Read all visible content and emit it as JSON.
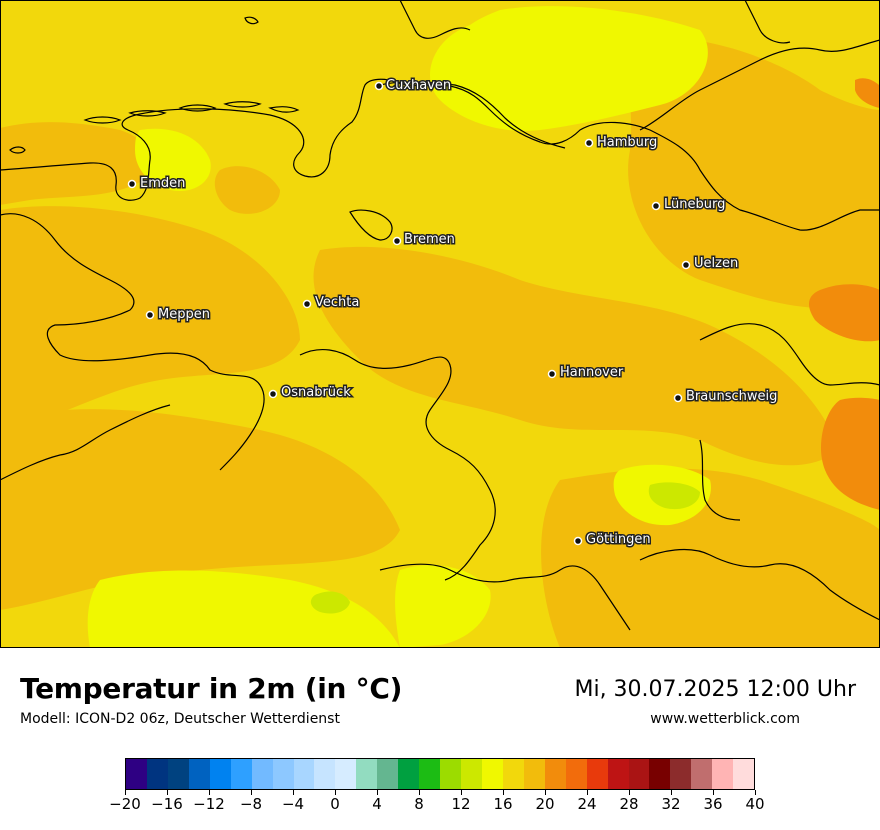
{
  "title": "Temperatur in 2m (in °C)",
  "model": "Modell: ICON-D2 06z, Deutscher Wetterdienst",
  "datetime": "Mi, 30.07.2025 12:00 Uhr",
  "website": "www.wetterblick.com",
  "cities": [
    {
      "name": "Cuxhaven"
    },
    {
      "name": "Hamburg"
    },
    {
      "name": "Emden"
    },
    {
      "name": "Lüneburg"
    },
    {
      "name": "Bremen"
    },
    {
      "name": "Uelzen"
    },
    {
      "name": "Vechta"
    },
    {
      "name": "Meppen"
    },
    {
      "name": "Hannover"
    },
    {
      "name": "Osnabrück"
    },
    {
      "name": "Braunschweig"
    },
    {
      "name": "Göttingen"
    }
  ],
  "colorbar": {
    "colors": [
      "#2e0083",
      "#003480",
      "#004280",
      "#0062c0",
      "#0082f0",
      "#2ea0ff",
      "#72baff",
      "#8dc8ff",
      "#a8d6ff",
      "#c6e4ff",
      "#d6ecff",
      "#92dcc0",
      "#64b690",
      "#00a040",
      "#1cbc14",
      "#9cdc00",
      "#cce800",
      "#f0f800",
      "#f2d80c",
      "#f2bc0c",
      "#f28c0c",
      "#f26c0c",
      "#e83a0c",
      "#be1414",
      "#aa1414",
      "#780000",
      "#8c2c2c",
      "#c06e6e",
      "#ffb4b4",
      "#ffdcdc"
    ],
    "tick_labels": [
      "−20",
      "−16",
      "−12",
      "−8",
      "−4",
      "0",
      "4",
      "8",
      "12",
      "16",
      "20",
      "24",
      "28",
      "32",
      "36",
      "40"
    ]
  },
  "map_colors": {
    "base": "#f2d80c",
    "warm": "#f2bc0c",
    "warmer": "#f28c0c",
    "cool": "#f0f800",
    "coolest": "#cce800",
    "border": "#000000"
  }
}
